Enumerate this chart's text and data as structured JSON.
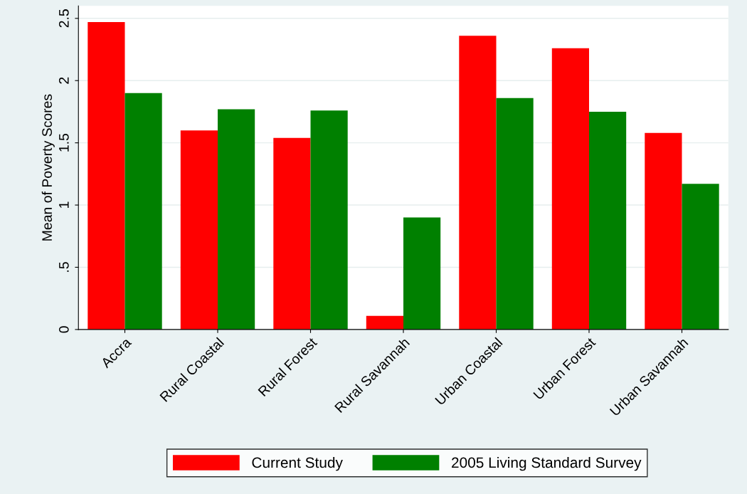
{
  "chart_data": {
    "type": "bar",
    "ylabel": "Mean of Poverty Scores",
    "categories": [
      "Accra",
      "Rural Coastal",
      "Rural Forest",
      "Rural Savannah",
      "Urban Coastal",
      "Urban Forest",
      "Urban Savannah"
    ],
    "series": [
      {
        "name": "Current Study",
        "color": "#ff0000",
        "values": [
          2.47,
          1.6,
          1.54,
          0.11,
          2.36,
          2.26,
          1.58
        ]
      },
      {
        "name": "2005 Living Standard Survey",
        "color": "#008000",
        "values": [
          1.9,
          1.77,
          1.76,
          0.9,
          1.86,
          1.75,
          1.17
        ]
      }
    ],
    "ylim": [
      0,
      2.6
    ],
    "yticks": [
      0,
      {
        "value": 0.5,
        "label": ".5"
      },
      1,
      1.5,
      2,
      2.5
    ],
    "grid": "y",
    "legend": "bottom"
  }
}
